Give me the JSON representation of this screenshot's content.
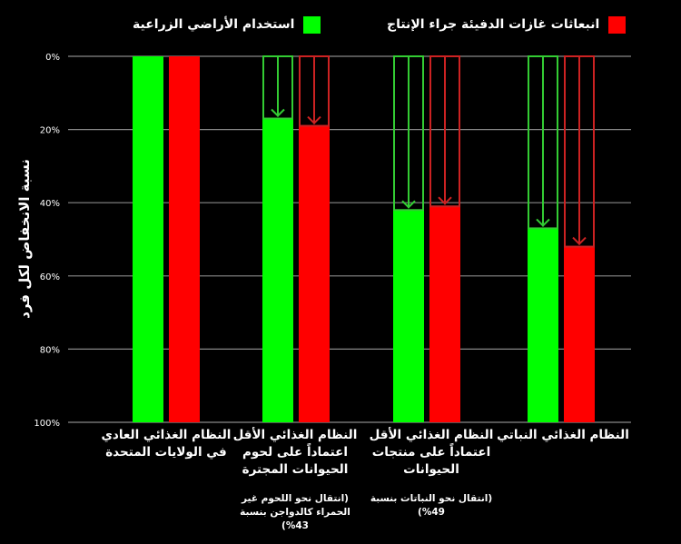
{
  "chart_data": {
    "type": "bar",
    "orientation": "vertical-inverted",
    "ylabel": "نسبة الانخفاض لكل فرد",
    "ylim": [
      0,
      100
    ],
    "yticks": [
      0,
      20,
      40,
      60,
      80,
      100
    ],
    "ytick_labels": [
      "0%",
      "20%",
      "40%",
      "60%",
      "80%",
      "100%"
    ],
    "grid": true,
    "legend_position": "top",
    "categories": [
      {
        "label": "النظام الغذائي العادي في الولايات المتحدة",
        "note": ""
      },
      {
        "label": "النظام الغذائي الأقل اعتماداً على لحوم الحيوانات المجترة",
        "note": "(انتقال نحو اللحوم غير الحمراء كالدواجن بنسبة 43%)"
      },
      {
        "label": "النظام الغذائي الأقل اعتماداً على منتجات الحيوانات",
        "note": "(انتقال نحو النباتات بنسبة 49%)"
      },
      {
        "label": "النظام الغذائي النباتي",
        "note": ""
      }
    ],
    "series": [
      {
        "name": "استخدام الأراضي الزراعية",
        "color": "#00ff00",
        "values": [
          0,
          17,
          42,
          47
        ]
      },
      {
        "name": "انبعاثات غازات الدفيئة جراء الإنتاج",
        "color": "#ff0000",
        "values": [
          0,
          19,
          41,
          52
        ]
      }
    ]
  },
  "colors": {
    "background": "#000000",
    "grid": "#888888",
    "land": "#00ff00",
    "ghg": "#ff0000",
    "land_arrow": "#33cc33",
    "ghg_arrow": "#cc2222"
  }
}
